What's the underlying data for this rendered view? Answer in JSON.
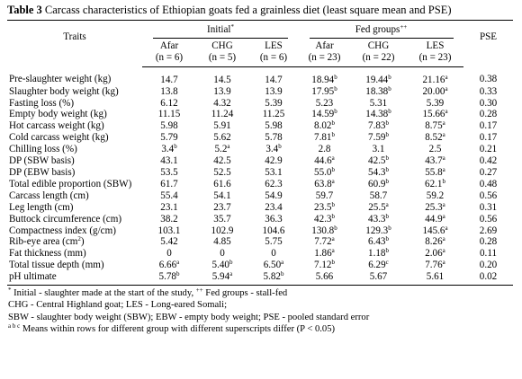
{
  "caption": {
    "label": "Table 3",
    "text": "Carcass characteristics of Ethiopian goats fed a grainless diet (least square mean and PSE)"
  },
  "header": {
    "traits": "Traits",
    "initial": {
      "label": "Initial",
      "mark": "*"
    },
    "fed": {
      "label": "Fed groups",
      "mark": "++"
    },
    "pse": "PSE",
    "columns": [
      {
        "name": "Afar",
        "n": "(n = 6)"
      },
      {
        "name": "CHG",
        "n": "(n = 5)"
      },
      {
        "name": "LES",
        "n": "(n = 6)"
      },
      {
        "name": "Afar",
        "n": "(n = 23)"
      },
      {
        "name": "CHG",
        "n": "(n = 22)"
      },
      {
        "name": "LES",
        "n": "(n = 23)"
      }
    ]
  },
  "rows": [
    {
      "trait": "Pre-slaughter weight (kg)",
      "cells": [
        [
          "14.7",
          ""
        ],
        [
          "14.5",
          ""
        ],
        [
          "14.7",
          ""
        ],
        [
          "18.94",
          "b"
        ],
        [
          "19.44",
          "b"
        ],
        [
          "21.16",
          "a"
        ]
      ],
      "pse": "0.38"
    },
    {
      "trait": "Slaughter body weight (kg)",
      "cells": [
        [
          "13.8",
          ""
        ],
        [
          "13.9",
          ""
        ],
        [
          "13.9",
          ""
        ],
        [
          "17.95",
          "b"
        ],
        [
          "18.38",
          "b"
        ],
        [
          "20.00",
          "a"
        ]
      ],
      "pse": "0.33"
    },
    {
      "trait": "Fasting loss (%)",
      "cells": [
        [
          "6.12",
          ""
        ],
        [
          "4.32",
          ""
        ],
        [
          "5.39",
          ""
        ],
        [
          "5.23",
          ""
        ],
        [
          "5.31",
          ""
        ],
        [
          "5.39",
          ""
        ]
      ],
      "pse": "0.30"
    },
    {
      "trait": "Empty body weight (kg)",
      "cells": [
        [
          "11.15",
          ""
        ],
        [
          "11.24",
          ""
        ],
        [
          "11.25",
          ""
        ],
        [
          "14.59",
          "b"
        ],
        [
          "14.38",
          "b"
        ],
        [
          "15.66",
          "a"
        ]
      ],
      "pse": "0.28"
    },
    {
      "trait": "Hot carcass weight (kg)",
      "cells": [
        [
          "5.98",
          ""
        ],
        [
          "5.91",
          ""
        ],
        [
          "5.98",
          ""
        ],
        [
          "8.02",
          "b"
        ],
        [
          "7.83",
          "b"
        ],
        [
          "8.75",
          "a"
        ]
      ],
      "pse": "0.17"
    },
    {
      "trait": "Cold carcass weight (kg)",
      "cells": [
        [
          "5.79",
          ""
        ],
        [
          "5.62",
          ""
        ],
        [
          "5.78",
          ""
        ],
        [
          "7.81",
          "b"
        ],
        [
          "7.59",
          "b"
        ],
        [
          "8.52",
          "a"
        ]
      ],
      "pse": "0.17"
    },
    {
      "trait": "Chilling loss (%)",
      "cells": [
        [
          "3.4",
          "b"
        ],
        [
          "5.2",
          "a"
        ],
        [
          "3.4",
          "b"
        ],
        [
          "2.8",
          ""
        ],
        [
          "3.1",
          ""
        ],
        [
          "2.5",
          ""
        ]
      ],
      "pse": "0.21"
    },
    {
      "trait": "DP (SBW basis)",
      "cells": [
        [
          "43.1",
          ""
        ],
        [
          "42.5",
          ""
        ],
        [
          "42.9",
          ""
        ],
        [
          "44.6",
          "a"
        ],
        [
          "42.5",
          "b"
        ],
        [
          "43.7",
          "a"
        ]
      ],
      "pse": "0.42"
    },
    {
      "trait": "DP (EBW basis)",
      "cells": [
        [
          "53.5",
          ""
        ],
        [
          "52.5",
          ""
        ],
        [
          "53.1",
          ""
        ],
        [
          "55.0",
          "b"
        ],
        [
          "54.3",
          "b"
        ],
        [
          "55.8",
          "a"
        ]
      ],
      "pse": "0.27"
    },
    {
      "trait": "Total edible proportion (SBW)",
      "cells": [
        [
          "61.7",
          ""
        ],
        [
          "61.6",
          ""
        ],
        [
          "62.3",
          ""
        ],
        [
          "63.8",
          "a"
        ],
        [
          "60.9",
          "b"
        ],
        [
          "62.1",
          "b"
        ]
      ],
      "pse": "0.48"
    },
    {
      "trait": "Carcass length (cm)",
      "cells": [
        [
          "55.4",
          ""
        ],
        [
          "54.1",
          ""
        ],
        [
          "54.9",
          ""
        ],
        [
          "59.7",
          ""
        ],
        [
          "58.7",
          ""
        ],
        [
          "59.2",
          ""
        ]
      ],
      "pse": "0.56"
    },
    {
      "trait": "Leg length (cm)",
      "cells": [
        [
          "23.1",
          ""
        ],
        [
          "23.7",
          ""
        ],
        [
          "23.4",
          ""
        ],
        [
          "23.5",
          "b"
        ],
        [
          "25.5",
          "a"
        ],
        [
          "25.3",
          "a"
        ]
      ],
      "pse": "0.31"
    },
    {
      "trait": "Buttock circumference (cm)",
      "cells": [
        [
          "38.2",
          ""
        ],
        [
          "35.7",
          ""
        ],
        [
          "36.3",
          ""
        ],
        [
          "42.3",
          "b"
        ],
        [
          "43.3",
          "b"
        ],
        [
          "44.9",
          "a"
        ]
      ],
      "pse": "0.56"
    },
    {
      "trait": "Compactness index (g/cm)",
      "cells": [
        [
          "103.1",
          ""
        ],
        [
          "102.9",
          ""
        ],
        [
          "104.6",
          ""
        ],
        [
          "130.8",
          "b"
        ],
        [
          "129.3",
          "b"
        ],
        [
          "145.6",
          "a"
        ]
      ],
      "pse": "2.69"
    },
    {
      "trait": "Rib-eye area (cm",
      "traitSup": "2",
      "traitTail": ")",
      "cells": [
        [
          "5.42",
          ""
        ],
        [
          "4.85",
          ""
        ],
        [
          "5.75",
          ""
        ],
        [
          "7.72",
          "a"
        ],
        [
          "6.43",
          "b"
        ],
        [
          "8.26",
          "a"
        ]
      ],
      "pse": "0.28"
    },
    {
      "trait": "Fat thickness (mm)",
      "cells": [
        [
          "0",
          ""
        ],
        [
          "0",
          ""
        ],
        [
          "0",
          ""
        ],
        [
          "1.86",
          "a"
        ],
        [
          "1.18",
          "b"
        ],
        [
          "2.06",
          "a"
        ]
      ],
      "pse": "0.11"
    },
    {
      "trait": "Total tissue depth (mm)",
      "cells": [
        [
          "6.66",
          "a"
        ],
        [
          "5.40",
          "b"
        ],
        [
          "6.50",
          "a"
        ],
        [
          "7.12",
          "b"
        ],
        [
          "6.29",
          "c"
        ],
        [
          "7.76",
          "a"
        ]
      ],
      "pse": "0.20"
    },
    {
      "trait": "pH ultimate",
      "cells": [
        [
          "5.78",
          "b"
        ],
        [
          "5.94",
          "a"
        ],
        [
          "5.82",
          "b"
        ],
        [
          "5.66",
          ""
        ],
        [
          "5.67",
          ""
        ],
        [
          "5.61",
          ""
        ]
      ],
      "pse": "0.02"
    }
  ],
  "notes": {
    "line1": {
      "mark1": "*",
      "text1": " Initial - slaughter made at the start of the study, ",
      "mark2": "++",
      "text2": " Fed groups - stall-fed"
    },
    "line2": "CHG - Central Highland goat; LES - Long-eared Somali;",
    "line3": "SBW - slaughter body weight (SBW); EBW - empty body weight; PSE - pooled standard error",
    "line4": {
      "mark": "a b c",
      "text": " Means within rows for different group with different superscripts differ (P < 0.05)"
    }
  }
}
